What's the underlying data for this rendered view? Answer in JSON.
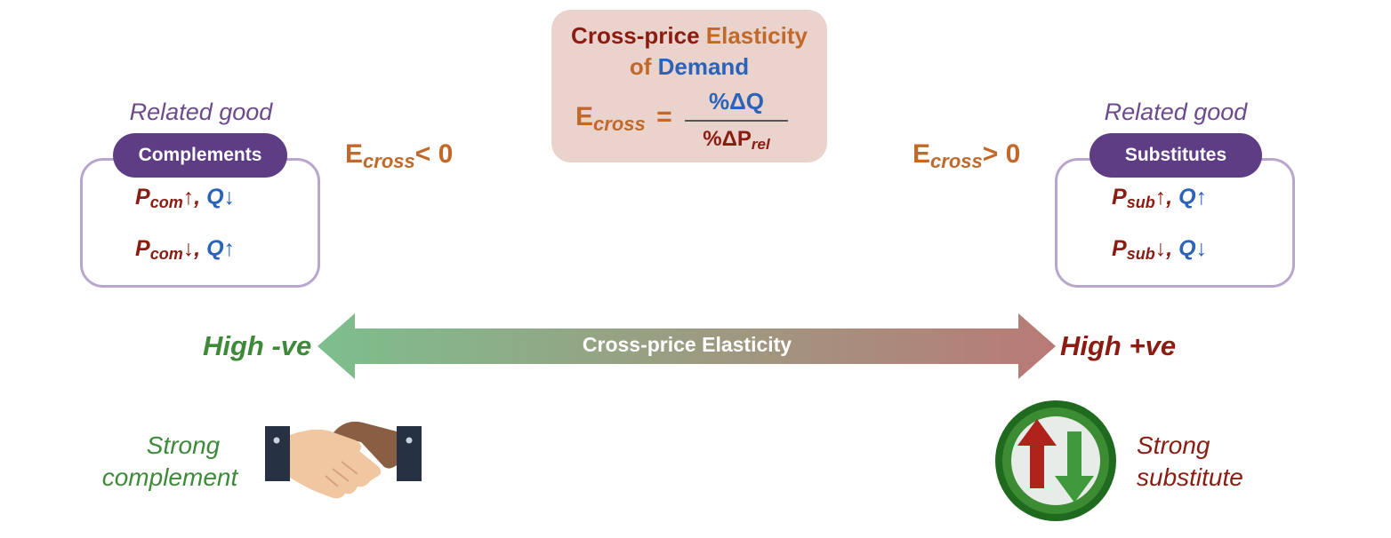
{
  "formula": {
    "title_part1": "Cross-price",
    "title_part2": "Elasticity",
    "title_part3": "of",
    "title_part4": "Demand",
    "lhs_symbol": "E",
    "lhs_sub": "cross",
    "equals": "=",
    "numerator": "%ΔQ",
    "denominator_main": "%ΔP",
    "denominator_sub": "rel"
  },
  "left_panel": {
    "related_label": "Related good",
    "pill_label": "Complements",
    "row1": {
      "p": "P",
      "sub": "com",
      "p_arrow": "↑",
      "sep": ",",
      "q": "Q",
      "q_arrow": "↓"
    },
    "row2": {
      "p": "P",
      "sub": "com",
      "p_arrow": "↓",
      "sep": ",",
      "q": "Q",
      "q_arrow": "↑"
    },
    "condition": {
      "symbol": "E",
      "sub": "cross",
      "rel": "< 0"
    }
  },
  "right_panel": {
    "related_label": "Related good",
    "pill_label": "Substitutes",
    "row1": {
      "p": "P",
      "sub": "sub",
      "p_arrow": "↑",
      "sep": ",",
      "q": "Q",
      "q_arrow": "↑"
    },
    "row2": {
      "p": "P",
      "sub": "sub",
      "p_arrow": "↓",
      "sep": ",",
      "q": "Q",
      "q_arrow": "↓"
    },
    "condition": {
      "symbol": "E",
      "sub": "cross",
      "rel": "> 0"
    }
  },
  "scale": {
    "center_label": "Cross-price Elasticity",
    "left_end": "High -ve",
    "right_end": "High +ve",
    "colors": {
      "left": "#7dbf8c",
      "right": "#b97a76"
    }
  },
  "bottom": {
    "left_line1": "Strong",
    "left_line2": "complement",
    "right_line1": "Strong",
    "right_line2": "substitute",
    "left_icon": "handshake-icon",
    "right_icon": "swap-arrows-icon"
  }
}
